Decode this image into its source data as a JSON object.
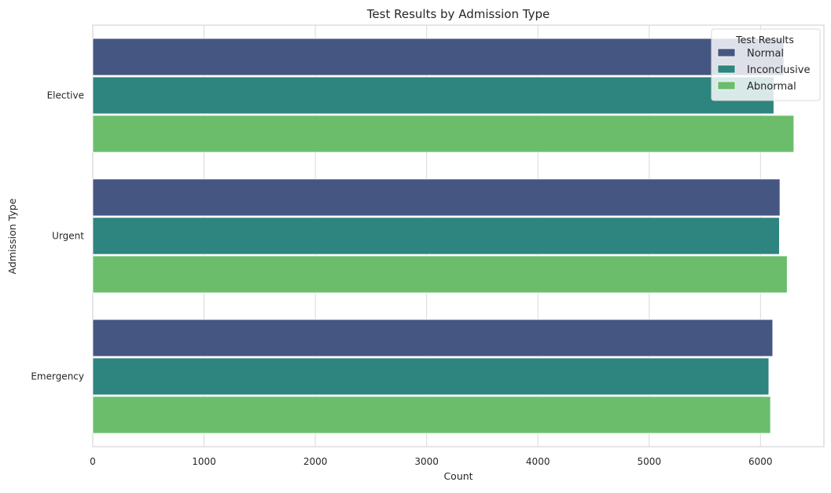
{
  "chart_data": {
    "type": "bar",
    "orientation": "horizontal",
    "title": "Test Results by Admission Type",
    "xlabel": "Count",
    "ylabel": "Admission Type",
    "xlim": [
      0,
      6570
    ],
    "xticks": [
      0,
      1000,
      2000,
      3000,
      4000,
      5000,
      6000
    ],
    "grid": true,
    "categories": [
      "Elective",
      "Urgent",
      "Emergency"
    ],
    "series": [
      {
        "name": "Normal",
        "color": "#465682",
        "values": [
          6210,
          6175,
          6110
        ]
      },
      {
        "name": "Inconclusive",
        "color": "#2e847e",
        "values": [
          6120,
          6170,
          6075
        ]
      },
      {
        "name": "Abnormal",
        "color": "#6bbd6c",
        "values": [
          6300,
          6240,
          6090
        ]
      }
    ],
    "legend": {
      "title": "Test Results",
      "position": "top-right"
    }
  }
}
